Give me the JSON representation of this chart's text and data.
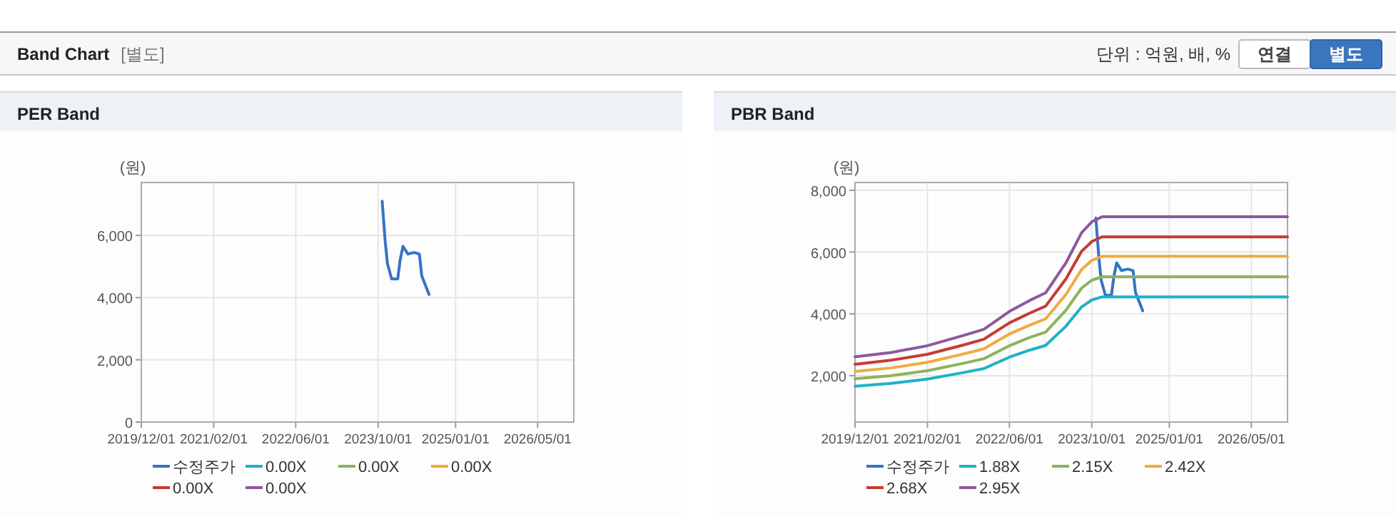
{
  "chart_data": [
    {
      "type": "other",
      "title": "Band Chart",
      "subtitle": "[별도]",
      "annotations": [
        "단위 : 억원, 배, %",
        "연결",
        "별도"
      ]
    },
    {
      "type": "line",
      "title": "PER Band",
      "ylabel": "(원)",
      "xlim": [
        "2019-12-01",
        "2026-12-01"
      ],
      "xticks": [
        {
          "value": "2019-12-01",
          "label": "2019/12/01"
        },
        {
          "value": "2021-02-01",
          "label": "2021/02/01"
        },
        {
          "value": "2022-06-01",
          "label": "2022/06/01"
        },
        {
          "value": "2023-10-01",
          "label": "2023/10/01"
        },
        {
          "value": "2025-01-01",
          "label": "2025/01/01"
        },
        {
          "value": "2026-05-01",
          "label": "2026/05/01"
        }
      ],
      "ylim": [
        0,
        7700
      ],
      "yticks": [
        0,
        {
          "value": 2000,
          "label": "2,000"
        },
        {
          "value": 4000,
          "label": "4,000"
        },
        {
          "value": 6000,
          "label": "6,000"
        }
      ],
      "grid": true,
      "legend": "bottom",
      "marker": "none",
      "line_style": "solid",
      "series": [
        {
          "name": "수정주가",
          "color": "#3474c6",
          "x": [
            "2023-10-25",
            "2023-11-12",
            "2023-11-25",
            "2023-12-20",
            "2024-01-25",
            "2024-02-08",
            "2024-02-25",
            "2024-03-25",
            "2024-05-01",
            "2024-06-01",
            "2024-06-15",
            "2024-07-28"
          ],
          "values": [
            7100,
            5800,
            5100,
            4600,
            4600,
            5200,
            5650,
            5400,
            5450,
            5400,
            4700,
            4100
          ]
        },
        {
          "name": "0.00X",
          "color": "#1fb1c6"
        },
        {
          "name": "0.00X",
          "color": "#8db35a"
        },
        {
          "name": "0.00X",
          "color": "#efab3f"
        },
        {
          "name": "0.00X",
          "color": "#c63b33"
        },
        {
          "name": "0.00X",
          "color": "#8e58a0"
        }
      ]
    },
    {
      "type": "line",
      "title": "PBR Band",
      "ylabel": "(원)",
      "xlim": [
        "2019-12-01",
        "2026-12-01"
      ],
      "xticks": [
        {
          "value": "2019-12-01",
          "label": "2019/12/01"
        },
        {
          "value": "2021-02-01",
          "label": "2021/02/01"
        },
        {
          "value": "2022-06-01",
          "label": "2022/06/01"
        },
        {
          "value": "2023-10-01",
          "label": "2023/10/01"
        },
        {
          "value": "2025-01-01",
          "label": "2025/01/01"
        },
        {
          "value": "2026-05-01",
          "label": "2026/05/01"
        }
      ],
      "ylim": [
        500,
        8250
      ],
      "yticks": [
        {
          "value": 2000,
          "label": "2,000"
        },
        {
          "value": 4000,
          "label": "4,000"
        },
        {
          "value": 6000,
          "label": "6,000"
        },
        {
          "value": 8000,
          "label": "8,000"
        }
      ],
      "grid": true,
      "legend": "bottom",
      "marker": "none",
      "line_style": "solid",
      "x": [
        "2019-12-01",
        "2020-07-01",
        "2021-02-01",
        "2021-09-01",
        "2022-01-01",
        "2022-06-01",
        "2022-10-01",
        "2023-01-01",
        "2023-05-01",
        "2023-08-01",
        "2023-10-01",
        "2023-12-01",
        "2026-12-01"
      ],
      "series": [
        {
          "name": "수정주가",
          "color": "#3474c6",
          "x": [
            "2023-10-25",
            "2023-11-12",
            "2023-11-25",
            "2023-12-20",
            "2024-01-25",
            "2024-02-08",
            "2024-02-25",
            "2024-03-25",
            "2024-05-01",
            "2024-06-01",
            "2024-06-15",
            "2024-07-28"
          ],
          "values": [
            7100,
            5800,
            5100,
            4600,
            4600,
            5200,
            5650,
            5400,
            5450,
            5400,
            4700,
            4100
          ]
        },
        {
          "name": "1.88X",
          "color": "#1fb1c6",
          "values": [
            1660,
            1750,
            1890,
            2100,
            2230,
            2600,
            2830,
            2980,
            3600,
            4220,
            4450,
            4550,
            4550
          ]
        },
        {
          "name": "2.15X",
          "color": "#8db35a",
          "values": [
            1900,
            2000,
            2160,
            2400,
            2550,
            2970,
            3240,
            3410,
            4120,
            4830,
            5090,
            5200,
            5200
          ]
        },
        {
          "name": "2.42X",
          "color": "#efab3f",
          "values": [
            2140,
            2250,
            2430,
            2700,
            2870,
            3350,
            3640,
            3840,
            4630,
            5430,
            5730,
            5860,
            5860
          ]
        },
        {
          "name": "2.68X",
          "color": "#c63b33",
          "values": [
            2370,
            2500,
            2690,
            2990,
            3180,
            3710,
            4030,
            4250,
            5130,
            6020,
            6340,
            6490,
            6490
          ]
        },
        {
          "name": "2.95X",
          "color": "#8e58a0",
          "values": [
            2610,
            2750,
            2970,
            3300,
            3500,
            4080,
            4440,
            4680,
            5650,
            6620,
            6980,
            7140,
            7140
          ]
        }
      ]
    }
  ]
}
